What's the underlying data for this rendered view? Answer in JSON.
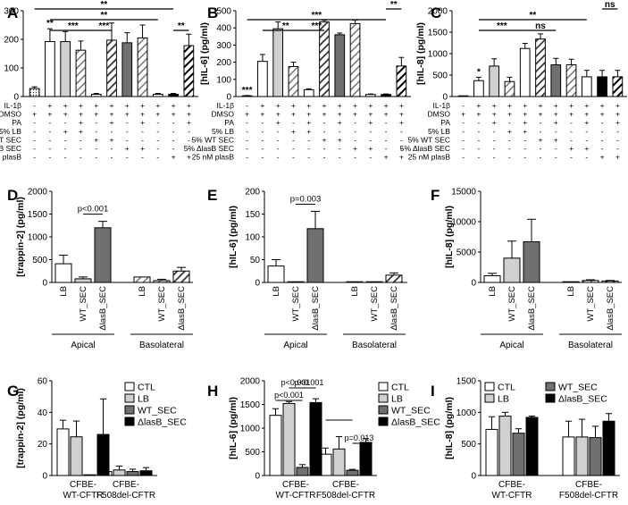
{
  "figure_title": "",
  "chart_data": [
    {
      "panel": "A",
      "type": "bar",
      "ylabel": "[trappin-2] (pg/ml)",
      "ylim": [
        0,
        300
      ],
      "yticks": [
        "0",
        "100",
        "200",
        "300"
      ],
      "categories": [
        "1",
        "2",
        "3",
        "4",
        "5",
        "6",
        "7",
        "8",
        "9",
        "10",
        "11"
      ],
      "values": [
        28,
        192,
        192,
        162,
        8,
        197,
        188,
        205,
        8,
        8,
        178
      ],
      "errors": [
        6,
        45,
        35,
        32,
        3,
        60,
        35,
        45,
        3,
        3,
        40
      ],
      "patterns": [
        "dots",
        "white",
        "lightgray",
        "hatch-light",
        "white",
        "hatch-dark",
        "darkgray",
        "hatch-light",
        "white",
        "black",
        "hatch-black"
      ],
      "stars": [
        {
          "bar": 1,
          "text": "**"
        }
      ],
      "brackets": [
        {
          "from": 1,
          "to": 4,
          "text": "***"
        },
        {
          "from": 4,
          "to": 5,
          "text": "***"
        },
        {
          "from": 1,
          "to": 8,
          "text": "**"
        },
        {
          "from": 0,
          "to": 9,
          "text": "**"
        },
        {
          "from": 9,
          "to": 10,
          "text": "**"
        }
      ],
      "conditions": [
        {
          "label": "IL-1β",
          "marks": [
            "-",
            "+",
            "+",
            "+",
            "+",
            "+",
            "+",
            "+",
            "+",
            "+",
            "+"
          ]
        },
        {
          "label": "DMSO",
          "marks": [
            "+",
            "+",
            "+",
            "+",
            "+",
            "+",
            "+",
            "+",
            "+",
            "+",
            "+"
          ]
        },
        {
          "label": "PA",
          "marks": [
            "-",
            "-",
            "-",
            "+",
            "-",
            "+",
            "-",
            "+",
            "-",
            "-",
            "+"
          ]
        },
        {
          "label": "5% LB",
          "marks": [
            "-",
            "-",
            "+",
            "+",
            "-",
            "-",
            "-",
            "-",
            "-",
            "-",
            "-"
          ]
        },
        {
          "label": "5% WT SEC",
          "marks": [
            "-",
            "-",
            "-",
            "-",
            "+",
            "+",
            "-",
            "-",
            "-",
            "-",
            "-"
          ]
        },
        {
          "label": "5% ΔlasB SEC",
          "marks": [
            "-",
            "-",
            "-",
            "-",
            "-",
            "-",
            "+",
            "+",
            "-",
            "-",
            "-"
          ]
        },
        {
          "label": "25 nM plasB",
          "marks": [
            "-",
            "-",
            "-",
            "-",
            "-",
            "-",
            "-",
            "-",
            "-",
            "+",
            "+"
          ]
        }
      ]
    },
    {
      "panel": "B",
      "type": "bar",
      "ylabel": "[hIL-6] (pg/ml)",
      "ylim": [
        0,
        500
      ],
      "yticks": [
        "0",
        "100",
        "200",
        "300",
        "400",
        "500"
      ],
      "categories": [
        "1",
        "2",
        "3",
        "4",
        "5",
        "6",
        "7",
        "8",
        "9",
        "10",
        "11"
      ],
      "values": [
        4,
        205,
        395,
        175,
        40,
        435,
        360,
        425,
        12,
        12,
        178
      ],
      "errors": [
        2,
        40,
        40,
        25,
        5,
        10,
        10,
        20,
        3,
        3,
        50
      ],
      "patterns": [
        "dots",
        "white",
        "lightgray",
        "hatch-light",
        "white",
        "hatch-dark",
        "darkgray",
        "hatch-light",
        "white",
        "black",
        "hatch-black"
      ],
      "stars": [
        {
          "bar": 0,
          "text": "***"
        }
      ],
      "brackets": [
        {
          "from": 1,
          "to": 4,
          "text": "**"
        },
        {
          "from": 4,
          "to": 5,
          "text": "***"
        },
        {
          "from": 0,
          "to": 9,
          "text": "***"
        },
        {
          "from": 9,
          "to": 10,
          "text": "**"
        }
      ],
      "conditions": [
        {
          "label": "IL-1β",
          "marks": [
            "-",
            "+",
            "+",
            "+",
            "+",
            "+",
            "+",
            "+",
            "+",
            "+",
            "+"
          ]
        },
        {
          "label": "DMSO",
          "marks": [
            "+",
            "+",
            "+",
            "+",
            "+",
            "+",
            "+",
            "+",
            "+",
            "+",
            "+"
          ]
        },
        {
          "label": "PA",
          "marks": [
            "-",
            "-",
            "+",
            "-",
            "+",
            "-",
            "+",
            "-",
            "+",
            "-",
            "+"
          ]
        },
        {
          "label": "5% LB",
          "marks": [
            "-",
            "-",
            "-",
            "+",
            "+",
            "-",
            "-",
            "-",
            "-",
            "-",
            "-"
          ]
        },
        {
          "label": "5% WT SEC",
          "marks": [
            "-",
            "-",
            "-",
            "-",
            "-",
            "+",
            "+",
            "-",
            "-",
            "-",
            "-"
          ]
        },
        {
          "label": "5% ΔlasB SEC",
          "marks": [
            "-",
            "-",
            "-",
            "-",
            "-",
            "-",
            "-",
            "+",
            "+",
            "-",
            "-"
          ]
        },
        {
          "label": "25 nM plasB",
          "marks": [
            "-",
            "-",
            "-",
            "-",
            "-",
            "-",
            "-",
            "-",
            "-",
            "+",
            "+"
          ]
        }
      ]
    },
    {
      "panel": "C",
      "type": "bar",
      "ylabel": "[hIL-8] (pg/ml)",
      "ylim": [
        0,
        2000
      ],
      "yticks": [
        "0",
        "500",
        "1000",
        "1500",
        "2000"
      ],
      "categories": [
        "1",
        "2",
        "3",
        "4",
        "5",
        "6",
        "7",
        "8",
        "9",
        "10",
        "11"
      ],
      "values": [
        0,
        370,
        710,
        350,
        1120,
        1340,
        740,
        740,
        460,
        460,
        460
      ],
      "errors": [
        0,
        80,
        170,
        100,
        120,
        120,
        150,
        130,
        150,
        150,
        150
      ],
      "patterns": [
        "dots",
        "white",
        "lightgray",
        "hatch-light",
        "white",
        "hatch-dark",
        "darkgray",
        "hatch-light",
        "white",
        "black",
        "hatch-black"
      ],
      "stars": [
        {
          "bar": 1,
          "text": "*"
        }
      ],
      "brackets": [
        {
          "from": 1,
          "to": 4,
          "text": "***"
        },
        {
          "from": 4,
          "to": 6,
          "text": "ns"
        },
        {
          "from": 1,
          "to": 8,
          "text": "**"
        },
        {
          "from": 9,
          "to": 10,
          "text": "ns"
        }
      ],
      "conditions": [
        {
          "label": "IL-1β",
          "marks": [
            "-",
            "+",
            "+",
            "+",
            "+",
            "+",
            "+",
            "+",
            "+",
            "+",
            "+"
          ]
        },
        {
          "label": "DMSO",
          "marks": [
            "+",
            "+",
            "+",
            "+",
            "+",
            "+",
            "+",
            "+",
            "+",
            "+",
            "+"
          ]
        },
        {
          "label": "PA",
          "marks": [
            "-",
            "-",
            "+",
            "-",
            "+",
            "-",
            "+",
            "-",
            "+",
            "-",
            "+"
          ]
        },
        {
          "label": "5% LB",
          "marks": [
            "-",
            "-",
            "-",
            "+",
            "+",
            "-",
            "-",
            "-",
            "-",
            "-",
            "-"
          ]
        },
        {
          "label": "5% WT SEC",
          "marks": [
            "-",
            "-",
            "-",
            "-",
            "-",
            "+",
            "+",
            "-",
            "-",
            "-",
            "-"
          ]
        },
        {
          "label": "5% ΔlasB SEC",
          "marks": [
            "-",
            "-",
            "-",
            "-",
            "-",
            "-",
            "-",
            "+",
            "+",
            "-",
            "-"
          ]
        },
        {
          "label": "25 nM plasB",
          "marks": [
            "-",
            "-",
            "-",
            "-",
            "-",
            "-",
            "-",
            "-",
            "-",
            "+",
            "+"
          ]
        }
      ]
    },
    {
      "panel": "D",
      "type": "bar",
      "ylabel": "[trappin-2] (pg/ml)",
      "ylim": [
        0,
        2000
      ],
      "yticks": [
        "0",
        "500",
        "1000",
        "1500",
        "2000"
      ],
      "categories": [
        "LB",
        "WT_SEC",
        "ΔlasB_SEC",
        "LB",
        "WT_SEC",
        "ΔlasB_SEC"
      ],
      "values": [
        410,
        80,
        1200,
        120,
        40,
        250
      ],
      "errors": [
        190,
        40,
        140,
        0,
        30,
        80
      ],
      "patterns": [
        "white",
        "lightgray",
        "darkgray",
        "hatch-light",
        "hatch-light",
        "hatch-dark"
      ],
      "groups": [
        "Apical",
        "Basolateral"
      ],
      "pvalues": [
        {
          "from": 1,
          "to": 2,
          "text": "p<0.001"
        }
      ]
    },
    {
      "panel": "E",
      "type": "bar",
      "ylabel": "[hIL-6] (pg/ml)",
      "ylim": [
        0,
        200
      ],
      "yticks": [
        "0",
        "50",
        "100",
        "150",
        "200"
      ],
      "categories": [
        "LB",
        "WT_SEC",
        "ΔlasB_SEC",
        "LB",
        "WT_SEC",
        "ΔlasB_SEC"
      ],
      "values": [
        36,
        0,
        118,
        0,
        0,
        16
      ],
      "errors": [
        14,
        0,
        38,
        0,
        0,
        5
      ],
      "patterns": [
        "white",
        "lightgray",
        "darkgray",
        "hatch-light",
        "hatch-light",
        "hatch-dark"
      ],
      "groups": [
        "Apical",
        "Basolateral"
      ],
      "pvalues": [
        {
          "from": 1,
          "to": 2,
          "text": "p=0.003"
        }
      ]
    },
    {
      "panel": "F",
      "type": "bar",
      "ylabel": "[hIL-8] (pg/ml)",
      "ylim": [
        0,
        15000
      ],
      "yticks": [
        "0",
        "5000",
        "10000",
        "15000"
      ],
      "categories": [
        "LB",
        "WT_SEC",
        "ΔlasB_SEC",
        "LB",
        "WT_SEC",
        "ΔlasB_SEC"
      ],
      "values": [
        1100,
        4000,
        6700,
        60,
        320,
        240
      ],
      "errors": [
        400,
        2800,
        3700,
        20,
        120,
        90
      ],
      "patterns": [
        "white",
        "lightgray",
        "darkgray",
        "hatch-light",
        "hatch-light",
        "hatch-dark"
      ],
      "groups": [
        "Apical",
        "Basolateral"
      ],
      "pvalues": []
    },
    {
      "panel": "G",
      "type": "bar",
      "ylabel": "[trappin-2] (pg/ml)",
      "ylim": [
        0,
        60
      ],
      "yticks": [
        "0",
        "20",
        "40",
        "60"
      ],
      "groups": [
        "CFBE-\nWT-CFTR",
        "CFBE-\nF508del-CFTR"
      ],
      "series": [
        {
          "name": "CTL",
          "values": [
            29.5,
            2.5
          ],
          "errors": [
            5.5,
            1.5
          ]
        },
        {
          "name": "LB",
          "values": [
            24.5,
            3.5
          ],
          "errors": [
            10,
            2.5
          ]
        },
        {
          "name": "WT_SEC",
          "values": [
            0,
            2.5
          ],
          "errors": [
            0,
            1.5
          ]
        },
        {
          "name": "ΔlasB_SEC",
          "values": [
            26,
            3
          ],
          "errors": [
            22.5,
            2
          ]
        }
      ],
      "pvalues": []
    },
    {
      "panel": "H",
      "type": "bar",
      "ylabel": "[hIL-6] (pg/ml)",
      "ylim": [
        0,
        2000
      ],
      "yticks": [
        "0",
        "500",
        "1000",
        "1500",
        "2000"
      ],
      "groups": [
        "CFBE-\nWT-CFTR",
        "CFBE-\nF508del-CFTR"
      ],
      "series": [
        {
          "name": "CTL",
          "values": [
            1270,
            450
          ],
          "errors": [
            140,
            130
          ]
        },
        {
          "name": "LB",
          "values": [
            1520,
            560
          ],
          "errors": [
            40,
            260
          ]
        },
        {
          "name": "WT_SEC",
          "values": [
            170,
            110
          ],
          "errors": [
            60,
            20
          ]
        },
        {
          "name": "ΔlasB_SEC",
          "values": [
            1540,
            700
          ],
          "errors": [
            80,
            80
          ]
        }
      ],
      "pvalues": [
        {
          "group": 0,
          "from": 0,
          "to": 2,
          "text": "p<0.001"
        },
        {
          "group": 0,
          "from": 1,
          "to": 2,
          "text": "p<0.001"
        },
        {
          "group": 0,
          "from": 2,
          "to": 3,
          "text": "p<0.001"
        },
        {
          "group": 1,
          "from": 0,
          "to": 2,
          "text": "p=0.002"
        },
        {
          "group": 1,
          "from": 2,
          "to": 3,
          "text": "p=0.013"
        }
      ]
    },
    {
      "panel": "I",
      "type": "bar",
      "ylabel": "[hIL-8] (pg/ml)",
      "ylim": [
        0,
        1500
      ],
      "yticks": [
        "0",
        "500",
        "1000",
        "1500"
      ],
      "groups": [
        "CFBE-\nWT-CFTR",
        "CFBE-\nF508del-CFTR"
      ],
      "series": [
        {
          "name": "CTL",
          "values": [
            730,
            610
          ],
          "errors": [
            200,
            250
          ]
        },
        {
          "name": "LB",
          "values": [
            940,
            610
          ],
          "errors": [
            60,
            280
          ]
        },
        {
          "name": "WT_SEC",
          "values": [
            670,
            600
          ],
          "errors": [
            70,
            180
          ]
        },
        {
          "name": "ΔlasB_SEC",
          "values": [
            920,
            860
          ],
          "errors": [
            20,
            120
          ]
        }
      ],
      "pvalues": []
    }
  ]
}
